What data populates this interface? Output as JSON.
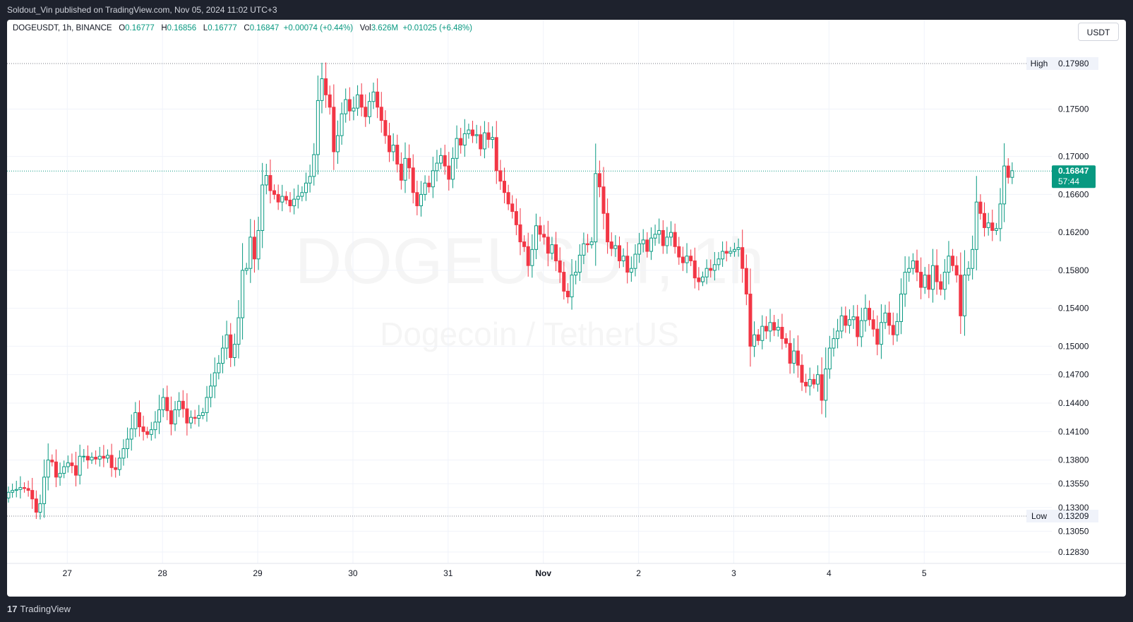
{
  "publish_info": "Soldout_Vin published on TradingView.com, Nov 05, 2024 11:02 UTC+3",
  "legend": {
    "symbol": "DOGEUSDT, 1h, BINANCE",
    "o_label": "O",
    "open": "0.16777",
    "h_label": "H",
    "high": "0.16856",
    "l_label": "L",
    "low": "0.16777",
    "c_label": "C",
    "close": "0.16847",
    "change": "+0.00074 (+0.44%)",
    "vol_label": "Vol",
    "volume": "3.626M",
    "vol_change": "+0.01025 (+6.48%)"
  },
  "currency_button": "USDT",
  "watermark": {
    "symbol": "DOGEUSDT, 1h",
    "description": "Dogecoin / TetherUS"
  },
  "footer": {
    "logo_mark": "17",
    "brand": "TradingView"
  },
  "colors": {
    "up": "#089981",
    "down": "#f23645",
    "background": "#ffffff",
    "grid": "#f0f3fa",
    "frame": "#1e222d"
  },
  "chart_data": {
    "type": "candlestick",
    "interval": "1h",
    "x_tick_labels": [
      "27",
      "28",
      "29",
      "30",
      "31",
      "Nov",
      "2",
      "3",
      "4",
      "5"
    ],
    "y_tick_labels": [
      "0.17500",
      "0.17000",
      "0.16600",
      "0.16200",
      "0.15800",
      "0.15400",
      "0.15000",
      "0.14700",
      "0.14400",
      "0.14100",
      "0.13800",
      "0.13550",
      "0.13300",
      "0.13050",
      "0.12830"
    ],
    "ylim": [
      0.1278,
      0.1808
    ],
    "high_marker": {
      "label": "High",
      "value": "0.17980"
    },
    "low_marker": {
      "label": "Low",
      "value": "0.13209"
    },
    "last_price": {
      "value": "0.16847",
      "countdown": "57:44"
    },
    "grid": true,
    "closes": [
      0.1346,
      0.1348,
      0.1349,
      0.1351,
      0.135,
      0.1348,
      0.1339,
      0.1325,
      0.1334,
      0.1362,
      0.138,
      0.1378,
      0.1362,
      0.1366,
      0.1373,
      0.1377,
      0.1374,
      0.1364,
      0.1384,
      0.1384,
      0.138,
      0.1383,
      0.1381,
      0.1384,
      0.1382,
      0.1385,
      0.1372,
      0.137,
      0.1382,
      0.1392,
      0.1402,
      0.1413,
      0.143,
      0.1415,
      0.141,
      0.1407,
      0.1412,
      0.142,
      0.1433,
      0.1446,
      0.1432,
      0.1418,
      0.1433,
      0.1442,
      0.1434,
      0.1419,
      0.1425,
      0.1424,
      0.1427,
      0.143,
      0.1446,
      0.1458,
      0.1472,
      0.1482,
      0.1498,
      0.1512,
      0.1488,
      0.1502,
      0.153,
      0.158,
      0.1582,
      0.1615,
      0.1592,
      0.1622,
      0.167,
      0.168,
      0.1664,
      0.166,
      0.1652,
      0.1658,
      0.1654,
      0.1648,
      0.1655,
      0.1658,
      0.1662,
      0.1672,
      0.1679,
      0.1702,
      0.1759,
      0.1782,
      0.1765,
      0.1752,
      0.1705,
      0.1722,
      0.1745,
      0.176,
      0.1748,
      0.1751,
      0.1765,
      0.1752,
      0.1742,
      0.1758,
      0.1768,
      0.1752,
      0.1738,
      0.1722,
      0.1705,
      0.1712,
      0.1692,
      0.1675,
      0.1698,
      0.1688,
      0.1662,
      0.1648,
      0.166,
      0.1672,
      0.1668,
      0.1685,
      0.1693,
      0.1701,
      0.169,
      0.1676,
      0.1698,
      0.1719,
      0.1712,
      0.1724,
      0.1728,
      0.1722,
      0.1723,
      0.1708,
      0.1725,
      0.1718,
      0.172,
      0.1685,
      0.1674,
      0.1662,
      0.165,
      0.1642,
      0.1628,
      0.161,
      0.1605,
      0.1585,
      0.1602,
      0.1627,
      0.1618,
      0.1615,
      0.1598,
      0.1607,
      0.159,
      0.1578,
      0.1558,
      0.1552,
      0.1575,
      0.1578,
      0.1596,
      0.1608,
      0.1607,
      0.161,
      0.1682,
      0.1668,
      0.164,
      0.161,
      0.1603,
      0.1606,
      0.159,
      0.1595,
      0.1578,
      0.1582,
      0.1597,
      0.1608,
      0.1612,
      0.16,
      0.1614,
      0.1618,
      0.1622,
      0.1606,
      0.1615,
      0.162,
      0.1605,
      0.1594,
      0.1588,
      0.1595,
      0.159,
      0.1572,
      0.1568,
      0.1573,
      0.1582,
      0.158,
      0.1586,
      0.1592,
      0.16,
      0.1598,
      0.16,
      0.1602,
      0.1604,
      0.1582,
      0.1555,
      0.15,
      0.1512,
      0.1506,
      0.1521,
      0.1516,
      0.1525,
      0.1517,
      0.152,
      0.1508,
      0.1503,
      0.1482,
      0.1495,
      0.148,
      0.1462,
      0.1458,
      0.1465,
      0.146,
      0.147,
      0.1443,
      0.1476,
      0.1498,
      0.1508,
      0.1516,
      0.1532,
      0.1522,
      0.1528,
      0.1531,
      0.151,
      0.1527,
      0.154,
      0.1528,
      0.1518,
      0.1502,
      0.1525,
      0.1535,
      0.1522,
      0.1512,
      0.1526,
      0.1555,
      0.1578,
      0.1582,
      0.159,
      0.1578,
      0.1562,
      0.1575,
      0.156,
      0.1585,
      0.1568,
      0.156,
      0.1578,
      0.1595,
      0.1585,
      0.1575,
      0.1532,
      0.1575,
      0.1582,
      0.1602,
      0.1652,
      0.164,
      0.1625,
      0.163,
      0.1622,
      0.1624,
      0.165,
      0.169,
      0.1678,
      0.1685
    ]
  }
}
